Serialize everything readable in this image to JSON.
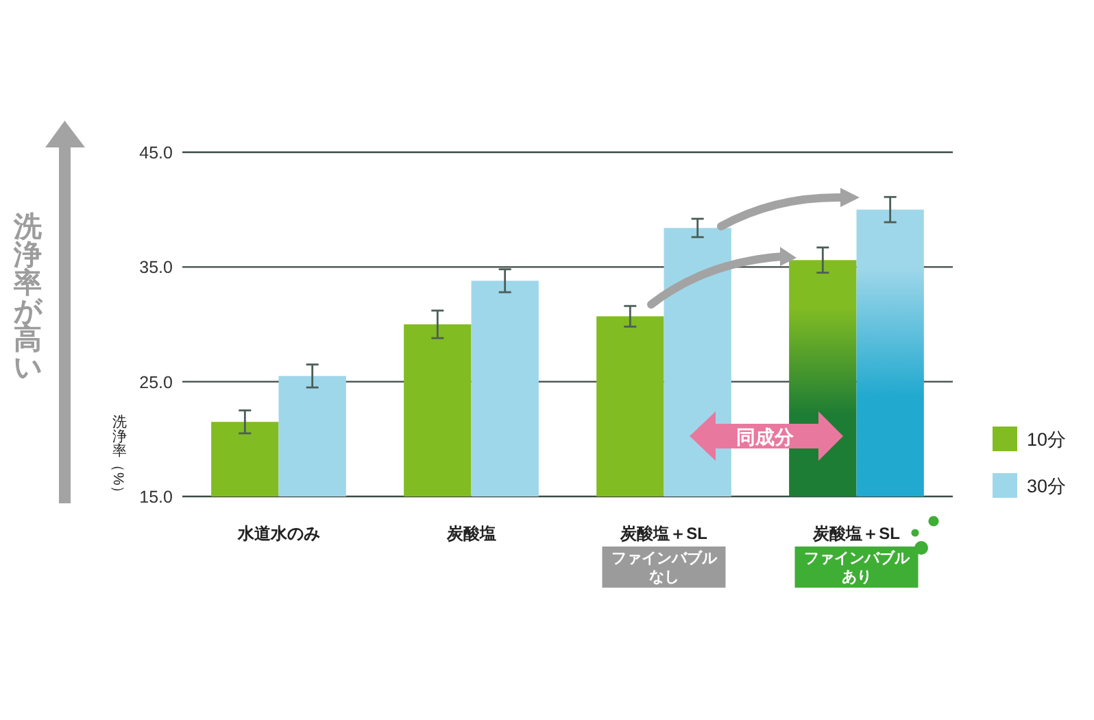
{
  "chart_data": {
    "type": "bar",
    "categories": [
      "水道水のみ",
      "炭酸塩",
      "炭酸塩＋SL",
      "炭酸塩＋SL"
    ],
    "series": [
      {
        "name": "10分",
        "color": "#82bc23",
        "colors": [
          "#82bc23",
          "#82bc23",
          "#82bc23",
          "#1e7d34"
        ],
        "values": [
          21.5,
          30.0,
          30.7,
          35.6
        ],
        "errors": [
          1.0,
          1.2,
          0.9,
          1.1
        ]
      },
      {
        "name": "30分",
        "color": "#9fd7ea",
        "colors": [
          "#9fd7ea",
          "#9fd7ea",
          "#9fd7ea",
          "#22a9cf"
        ],
        "values": [
          25.5,
          33.8,
          38.4,
          40.0
        ],
        "errors": [
          1.0,
          1.0,
          0.8,
          1.1
        ]
      }
    ],
    "ylabel": "洗浄率（%）",
    "ylim": [
      15,
      45
    ],
    "yticks": [
      {
        "value": 15,
        "label": "15.0"
      },
      {
        "value": 25,
        "label": "25.0"
      },
      {
        "value": 35,
        "label": "35.0"
      },
      {
        "value": 45,
        "label": "45.0"
      }
    ],
    "grid": "y",
    "legend": "bottom right",
    "annotations": [
      "洗浄率が高い",
      "同成分",
      "ファインバブルなし",
      "ファインバブルあり"
    ]
  }
}
